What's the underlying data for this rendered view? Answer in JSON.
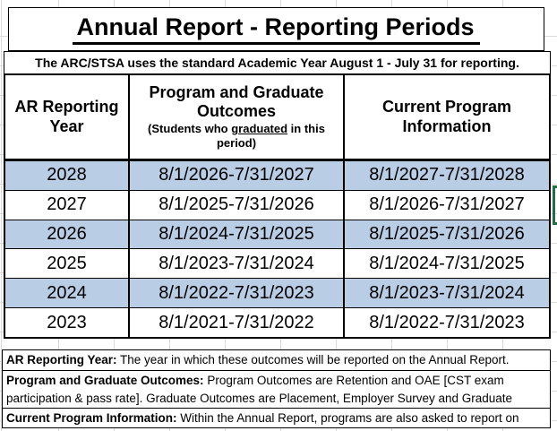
{
  "title": "Annual Report - Reporting Periods",
  "subtitle": "The ARC/STSA uses the standard Academic Year August 1 - July 31 for reporting.",
  "table": {
    "header": {
      "col1": "AR Reporting Year",
      "col2": "Program and Graduate Outcomes",
      "col2_sub_before": "(Students who ",
      "col2_sub_underline": "graduated",
      "col2_sub_after": " in this period)",
      "col3": "Current Program Information"
    },
    "rows": [
      {
        "year": "2028",
        "outcomes": "8/1/2026-7/31/2027",
        "current": "8/1/2027-7/31/2028",
        "shaded": true
      },
      {
        "year": "2027",
        "outcomes": "8/1/2025-7/31/2026",
        "current": "8/1/2026-7/31/2027",
        "shaded": false
      },
      {
        "year": "2026",
        "outcomes": "8/1/2024-7/31/2025",
        "current": "8/1/2025-7/31/2026",
        "shaded": true
      },
      {
        "year": "2025",
        "outcomes": "8/1/2023-7/31/2024",
        "current": "8/1/2024-7/31/2025",
        "shaded": false
      },
      {
        "year": "2024",
        "outcomes": "8/1/2022-7/31/2023",
        "current": "8/1/2023-7/31/2024",
        "shaded": true
      },
      {
        "year": "2023",
        "outcomes": "8/1/2021-7/31/2022",
        "current": "8/1/2022-7/31/2023",
        "shaded": false
      }
    ]
  },
  "footnotes": [
    {
      "lead": "AR Reporting Year:",
      "text": " The year in which these outcomes will be reported on the Annual Report."
    },
    {
      "lead": "Program and Graduate Outcomes:",
      "text": " Program Outcomes are Retention and OAE [CST exam participation & pass rate]. Graduate Outcomes are Placement, Employer Survey and Graduate"
    },
    {
      "lead": "Current Program Information:",
      "text": " Within the Annual Report, programs are also asked to report on"
    }
  ],
  "colors": {
    "row_shade": "#B9CDE5",
    "selection_green": "#1E7145",
    "gridline": "#DADADA",
    "border": "#000000"
  }
}
